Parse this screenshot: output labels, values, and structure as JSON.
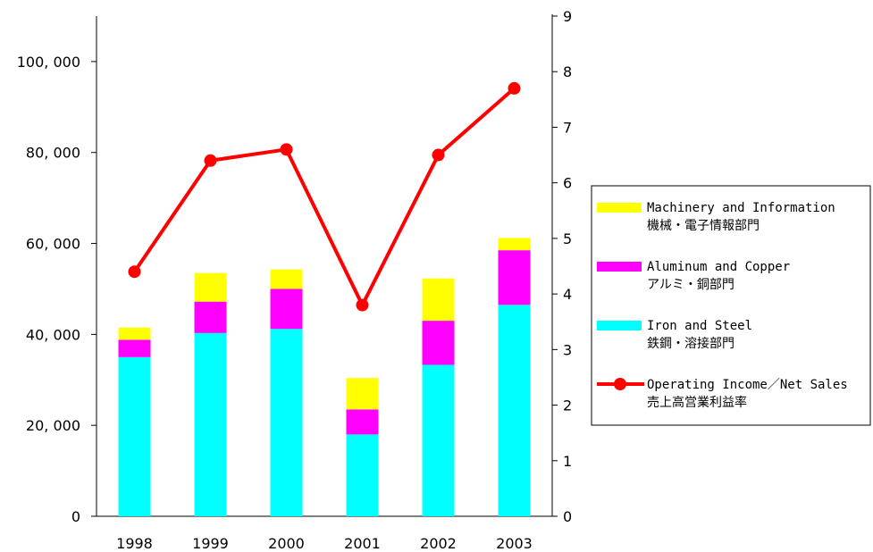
{
  "chart_data": {
    "type": "bar",
    "stacked": true,
    "categories": [
      "1998",
      "1999",
      "2000",
      "2001",
      "2002",
      "2003"
    ],
    "y_left": {
      "lim": [
        0,
        110000
      ],
      "ticks": [
        0,
        20000,
        40000,
        60000,
        80000,
        100000
      ],
      "tick_labels": [
        "0",
        "20, 000",
        "40, 000",
        "60, 000",
        "80, 000",
        "100, 000"
      ]
    },
    "y_right": {
      "lim": [
        0,
        9
      ],
      "ticks": [
        0,
        1,
        2,
        3,
        4,
        5,
        6,
        7,
        8,
        9
      ],
      "tick_labels": [
        "0",
        "1",
        "2",
        "3",
        "4",
        "5",
        "6",
        "7",
        "8",
        "9"
      ]
    },
    "grid": false,
    "legend_position": "right",
    "series": [
      {
        "name": "Iron and Steel",
        "name_ja": "鉄鋼・溶接部門",
        "kind": "bar",
        "axis": "left",
        "color": "#00FFFF",
        "values": [
          35000,
          40300,
          41200,
          18000,
          33300,
          46500
        ]
      },
      {
        "name": "Aluminum and Copper",
        "name_ja": "アルミ・銅部門",
        "kind": "bar",
        "axis": "left",
        "color": "#FF00FF",
        "values": [
          3800,
          6900,
          8800,
          5500,
          9700,
          12000
        ]
      },
      {
        "name": "Machinery and Information",
        "name_ja": "機械・電子情報部門",
        "kind": "bar",
        "axis": "left",
        "color": "#FFFF00",
        "values": [
          2700,
          6300,
          4300,
          6900,
          9300,
          2700
        ]
      },
      {
        "name": "Operating Income／Net Sales",
        "name_ja": "売上高営業利益率",
        "kind": "line",
        "axis": "right",
        "color": "#FF0000",
        "values": [
          4.4,
          6.4,
          6.6,
          3.8,
          6.5,
          7.7
        ]
      }
    ],
    "legend_order": [
      2,
      1,
      0,
      3
    ]
  }
}
